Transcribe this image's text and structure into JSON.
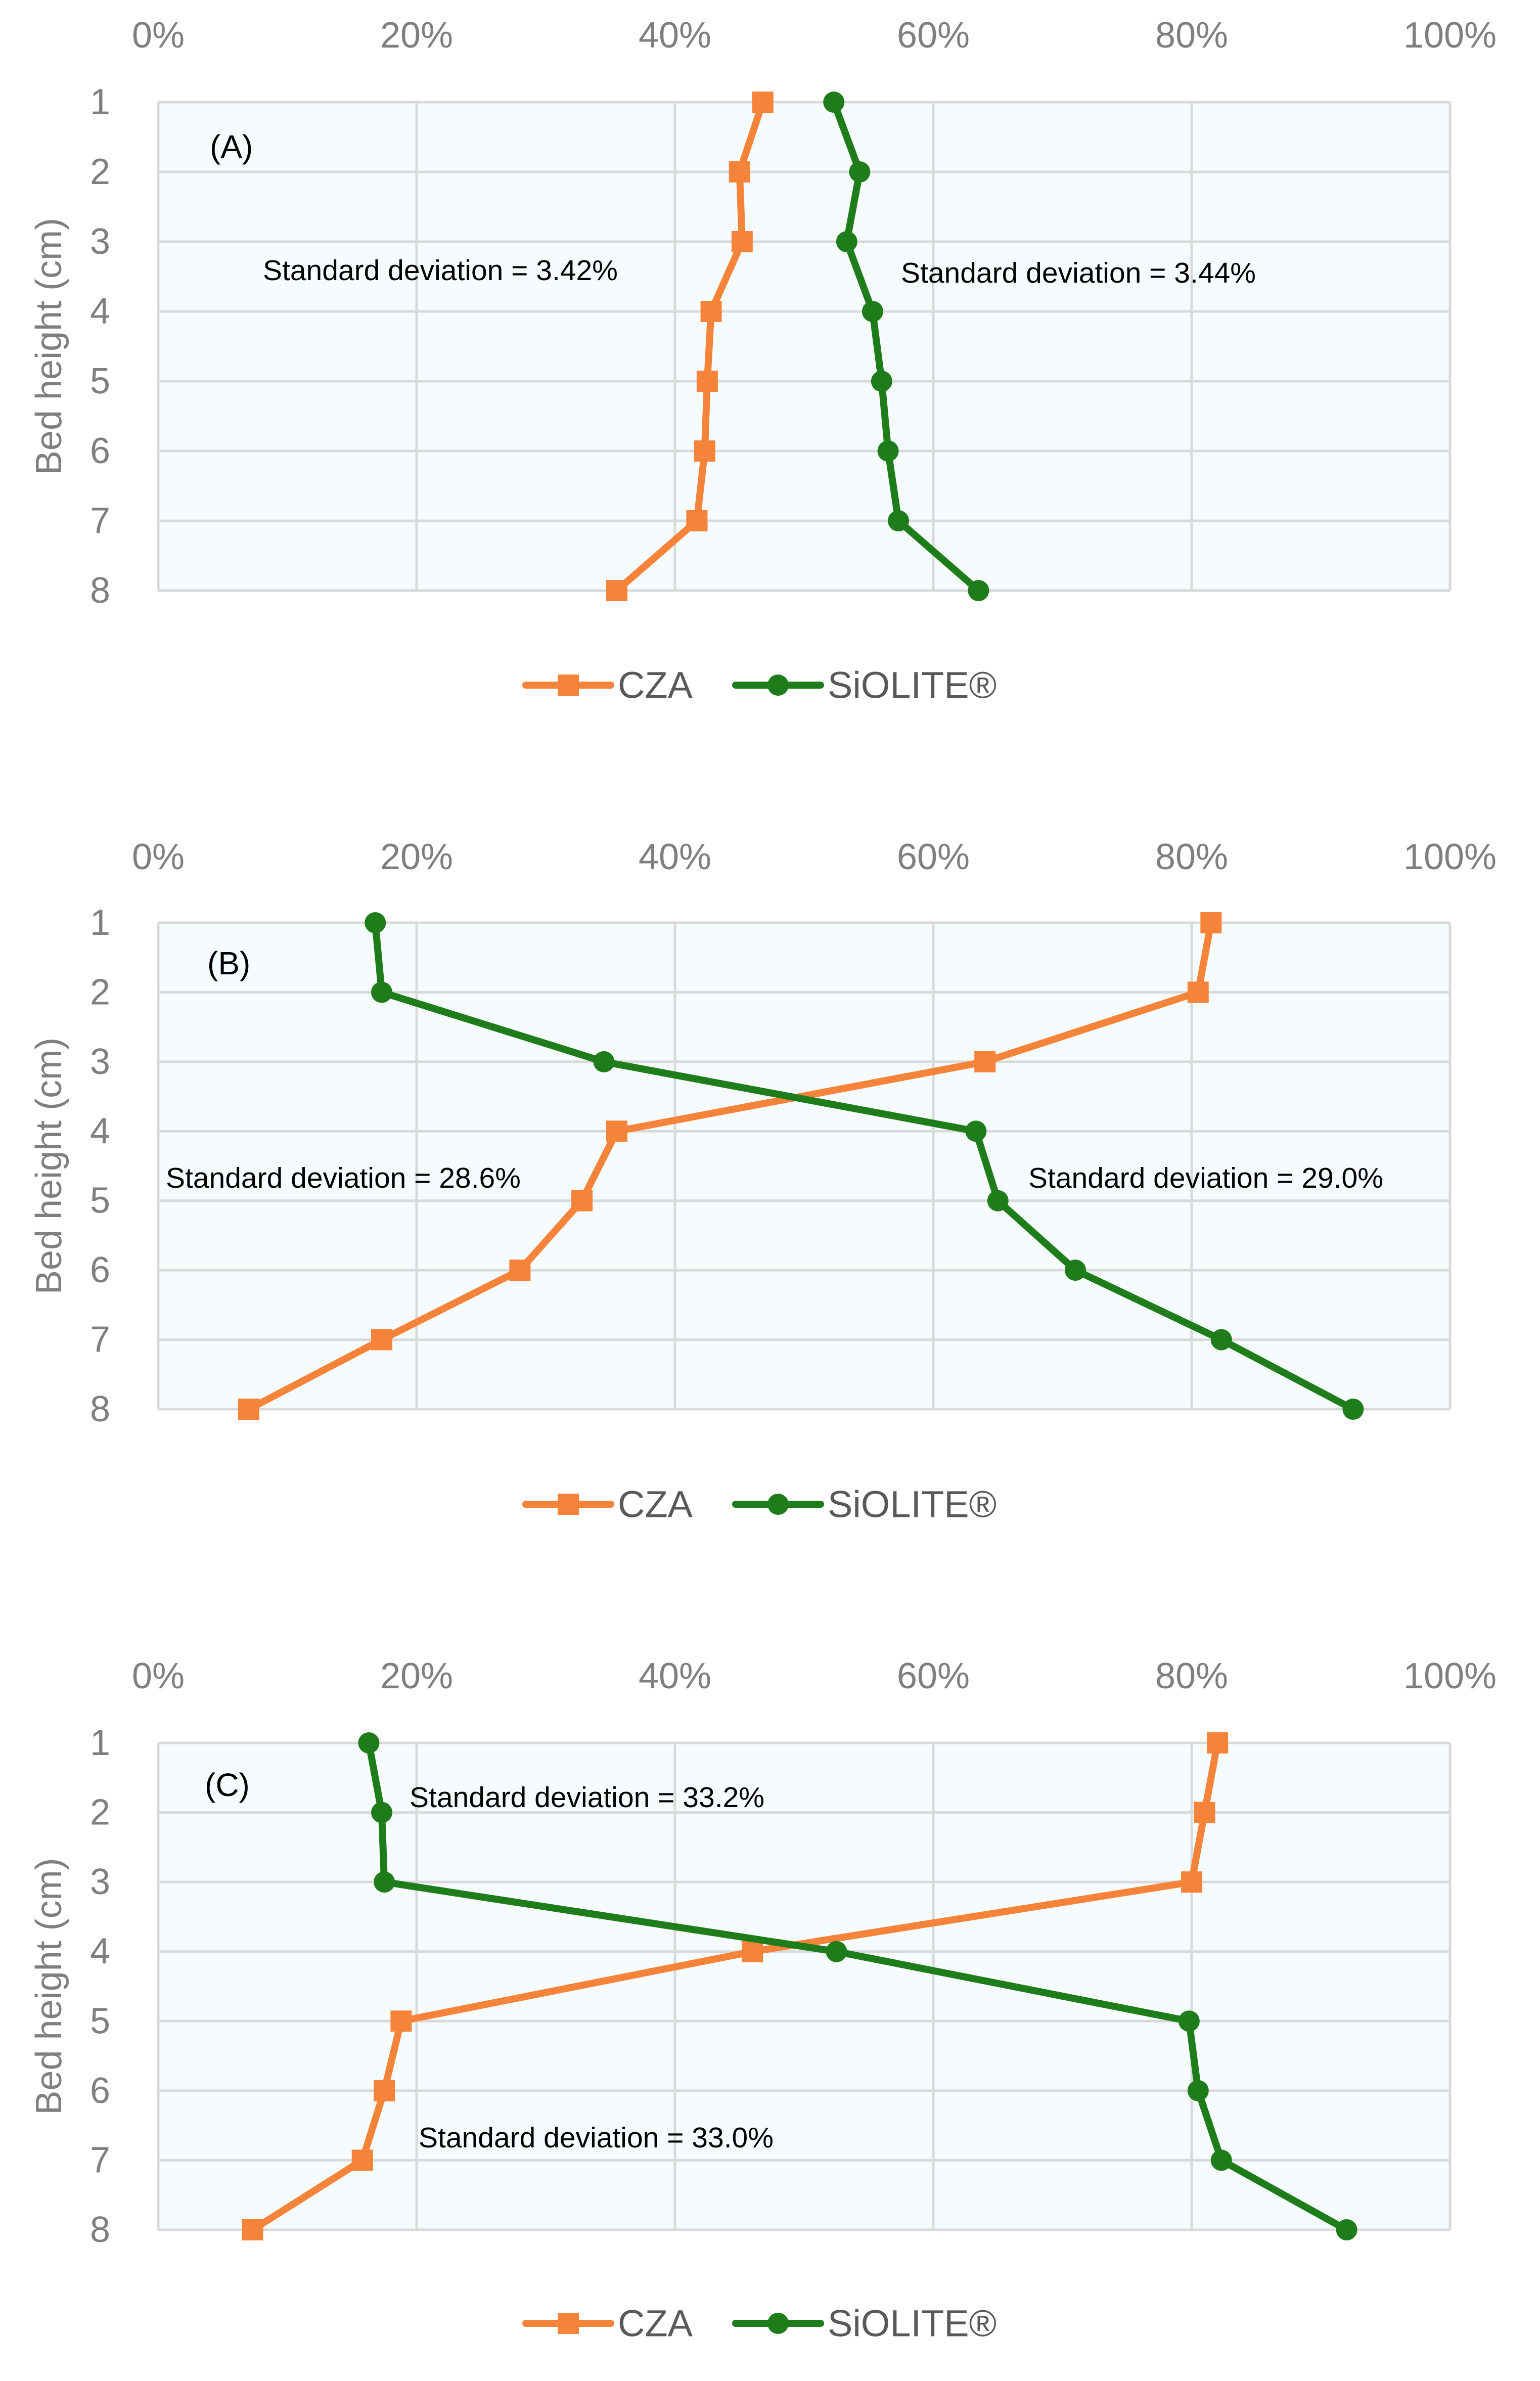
{
  "chart_data": [
    {
      "type": "line",
      "panel_label": "(A)",
      "ylabel": "Bed height (cm)",
      "x_ticks": [
        "0%",
        "20%",
        "40%",
        "60%",
        "80%",
        "100%"
      ],
      "y_ticks": [
        "1",
        "2",
        "3",
        "4",
        "5",
        "6",
        "7",
        "8"
      ],
      "xlim": [
        0,
        100
      ],
      "ylim": [
        1,
        8
      ],
      "x_axis_position": "top",
      "y_axis_inverted": true,
      "grid": true,
      "legend_position": "bottom",
      "series": [
        {
          "name": "CZA",
          "color": "#f5843a",
          "marker": "square",
          "x": [
            46.8,
            45.0,
            45.2,
            42.8,
            42.5,
            42.3,
            41.7,
            35.5
          ],
          "y": [
            1,
            2,
            3,
            4,
            5,
            6,
            7,
            8
          ]
        },
        {
          "name": "SiOLITE®",
          "color": "#1e7d1a",
          "marker": "circle",
          "x": [
            52.3,
            54.3,
            53.3,
            55.3,
            56.0,
            56.5,
            57.3,
            63.5
          ],
          "y": [
            1,
            2,
            3,
            4,
            5,
            6,
            7,
            8
          ]
        }
      ],
      "annotations": [
        {
          "text": "Standard deviation = 3.42%",
          "series": "CZA"
        },
        {
          "text": "Standard deviation = 3.44%",
          "series": "SiOLITE®"
        }
      ]
    },
    {
      "type": "line",
      "panel_label": "(B)",
      "ylabel": "Bed height (cm)",
      "x_ticks": [
        "0%",
        "20%",
        "40%",
        "60%",
        "80%",
        "100%"
      ],
      "y_ticks": [
        "1",
        "2",
        "3",
        "4",
        "5",
        "6",
        "7",
        "8"
      ],
      "xlim": [
        0,
        100
      ],
      "ylim": [
        1,
        8
      ],
      "x_axis_position": "top",
      "y_axis_inverted": true,
      "grid": true,
      "legend_position": "bottom",
      "series": [
        {
          "name": "CZA",
          "color": "#f5843a",
          "marker": "square",
          "x": [
            81.5,
            80.5,
            64.0,
            35.5,
            32.8,
            28.0,
            17.3,
            7.0
          ],
          "y": [
            1,
            2,
            3,
            4,
            5,
            6,
            7,
            8
          ]
        },
        {
          "name": "SiOLITE®",
          "color": "#1e7d1a",
          "marker": "circle",
          "x": [
            16.8,
            17.3,
            34.5,
            63.3,
            65.0,
            71.0,
            82.3,
            92.5
          ],
          "y": [
            1,
            2,
            3,
            4,
            5,
            6,
            7,
            8
          ]
        }
      ],
      "annotations": [
        {
          "text": "Standard deviation = 28.6%",
          "series": "CZA"
        },
        {
          "text": "Standard deviation = 29.0%",
          "series": "SiOLITE®"
        }
      ]
    },
    {
      "type": "line",
      "panel_label": "(C)",
      "ylabel": "Bed height (cm)",
      "x_ticks": [
        "0%",
        "20%",
        "40%",
        "60%",
        "80%",
        "100%"
      ],
      "y_ticks": [
        "1",
        "2",
        "3",
        "4",
        "5",
        "6",
        "7",
        "8"
      ],
      "xlim": [
        0,
        100
      ],
      "ylim": [
        1,
        8
      ],
      "x_axis_position": "top",
      "y_axis_inverted": true,
      "grid": true,
      "legend_position": "bottom",
      "series": [
        {
          "name": "CZA",
          "color": "#f5843a",
          "marker": "square",
          "x": [
            82.0,
            81.0,
            80.0,
            46.0,
            18.8,
            17.5,
            15.8,
            7.3
          ],
          "y": [
            1,
            2,
            3,
            4,
            5,
            6,
            7,
            8
          ]
        },
        {
          "name": "SiOLITE®",
          "color": "#1e7d1a",
          "marker": "circle",
          "x": [
            16.3,
            17.3,
            17.5,
            52.5,
            79.8,
            80.5,
            82.3,
            92.0
          ],
          "y": [
            1,
            2,
            3,
            4,
            5,
            6,
            7,
            8
          ]
        }
      ],
      "annotations": [
        {
          "text": "Standard deviation = 33.2%",
          "series": "SiOLITE®"
        },
        {
          "text": "Standard deviation = 33.0%",
          "series": "CZA"
        }
      ]
    }
  ]
}
